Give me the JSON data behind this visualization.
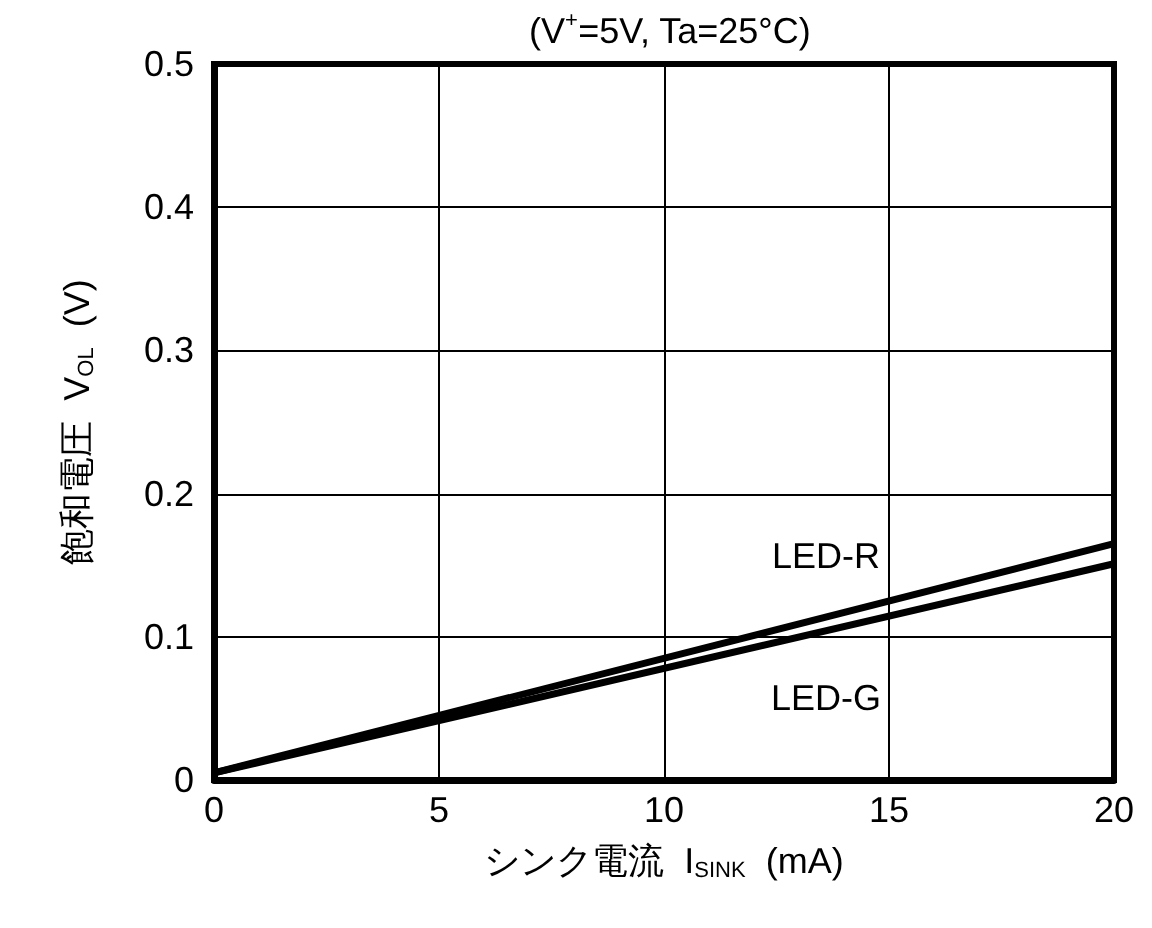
{
  "chart_data": {
    "type": "line",
    "title": "(V$^{+}$=5V, Ta=25°C)",
    "xlabel": "シンク電流  I$_{SINK}$  (mA)",
    "ylabel": "飽和電圧  V$_{OL}$  (V)",
    "xlim": [
      0,
      20
    ],
    "xticks": [
      0,
      5,
      10,
      15,
      20
    ],
    "ylim": [
      0,
      0.5
    ],
    "yticks": [
      0,
      0.1,
      0.2,
      0.3,
      0.4,
      0.5
    ],
    "grid": true,
    "x": [
      0,
      20
    ],
    "series": [
      {
        "name": "LED-R",
        "color": "#000000",
        "values": [
          0.005,
          0.165
        ]
      },
      {
        "name": "LED-G",
        "color": "#000000",
        "values": [
          0.005,
          0.151
        ]
      }
    ]
  }
}
